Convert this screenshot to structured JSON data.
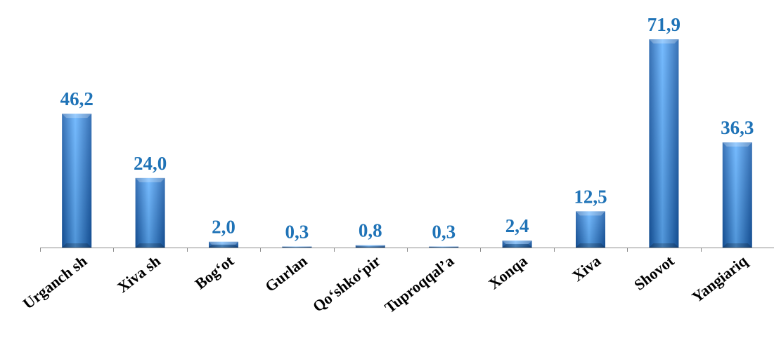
{
  "chart_data": {
    "type": "bar",
    "title": "",
    "xlabel": "",
    "ylabel": "",
    "categories": [
      "Urganch sh",
      "Xiva sh",
      "Bog‘ot",
      "Gurlan",
      "Qo‘shko‘pir",
      "Tuproqqal’a",
      "Xonqa",
      "Xiva",
      "Shovot",
      "Yangiariq"
    ],
    "values": [
      46.2,
      24.0,
      2.0,
      0.3,
      0.8,
      0.3,
      2.4,
      12.5,
      71.9,
      36.3
    ],
    "value_labels": [
      "46,2",
      "24,0",
      "2,0",
      "0,3",
      "0,8",
      "0,3",
      "2,4",
      "12,5",
      "71,9",
      "36,3"
    ],
    "ylim": [
      0,
      71.9
    ],
    "grid": false,
    "legend": "none",
    "bar_color": "#2f7fd6",
    "bar_color_light": "#5fb0ff",
    "bar_color_dark": "#1659a8",
    "label_color": "#1f73b7"
  }
}
